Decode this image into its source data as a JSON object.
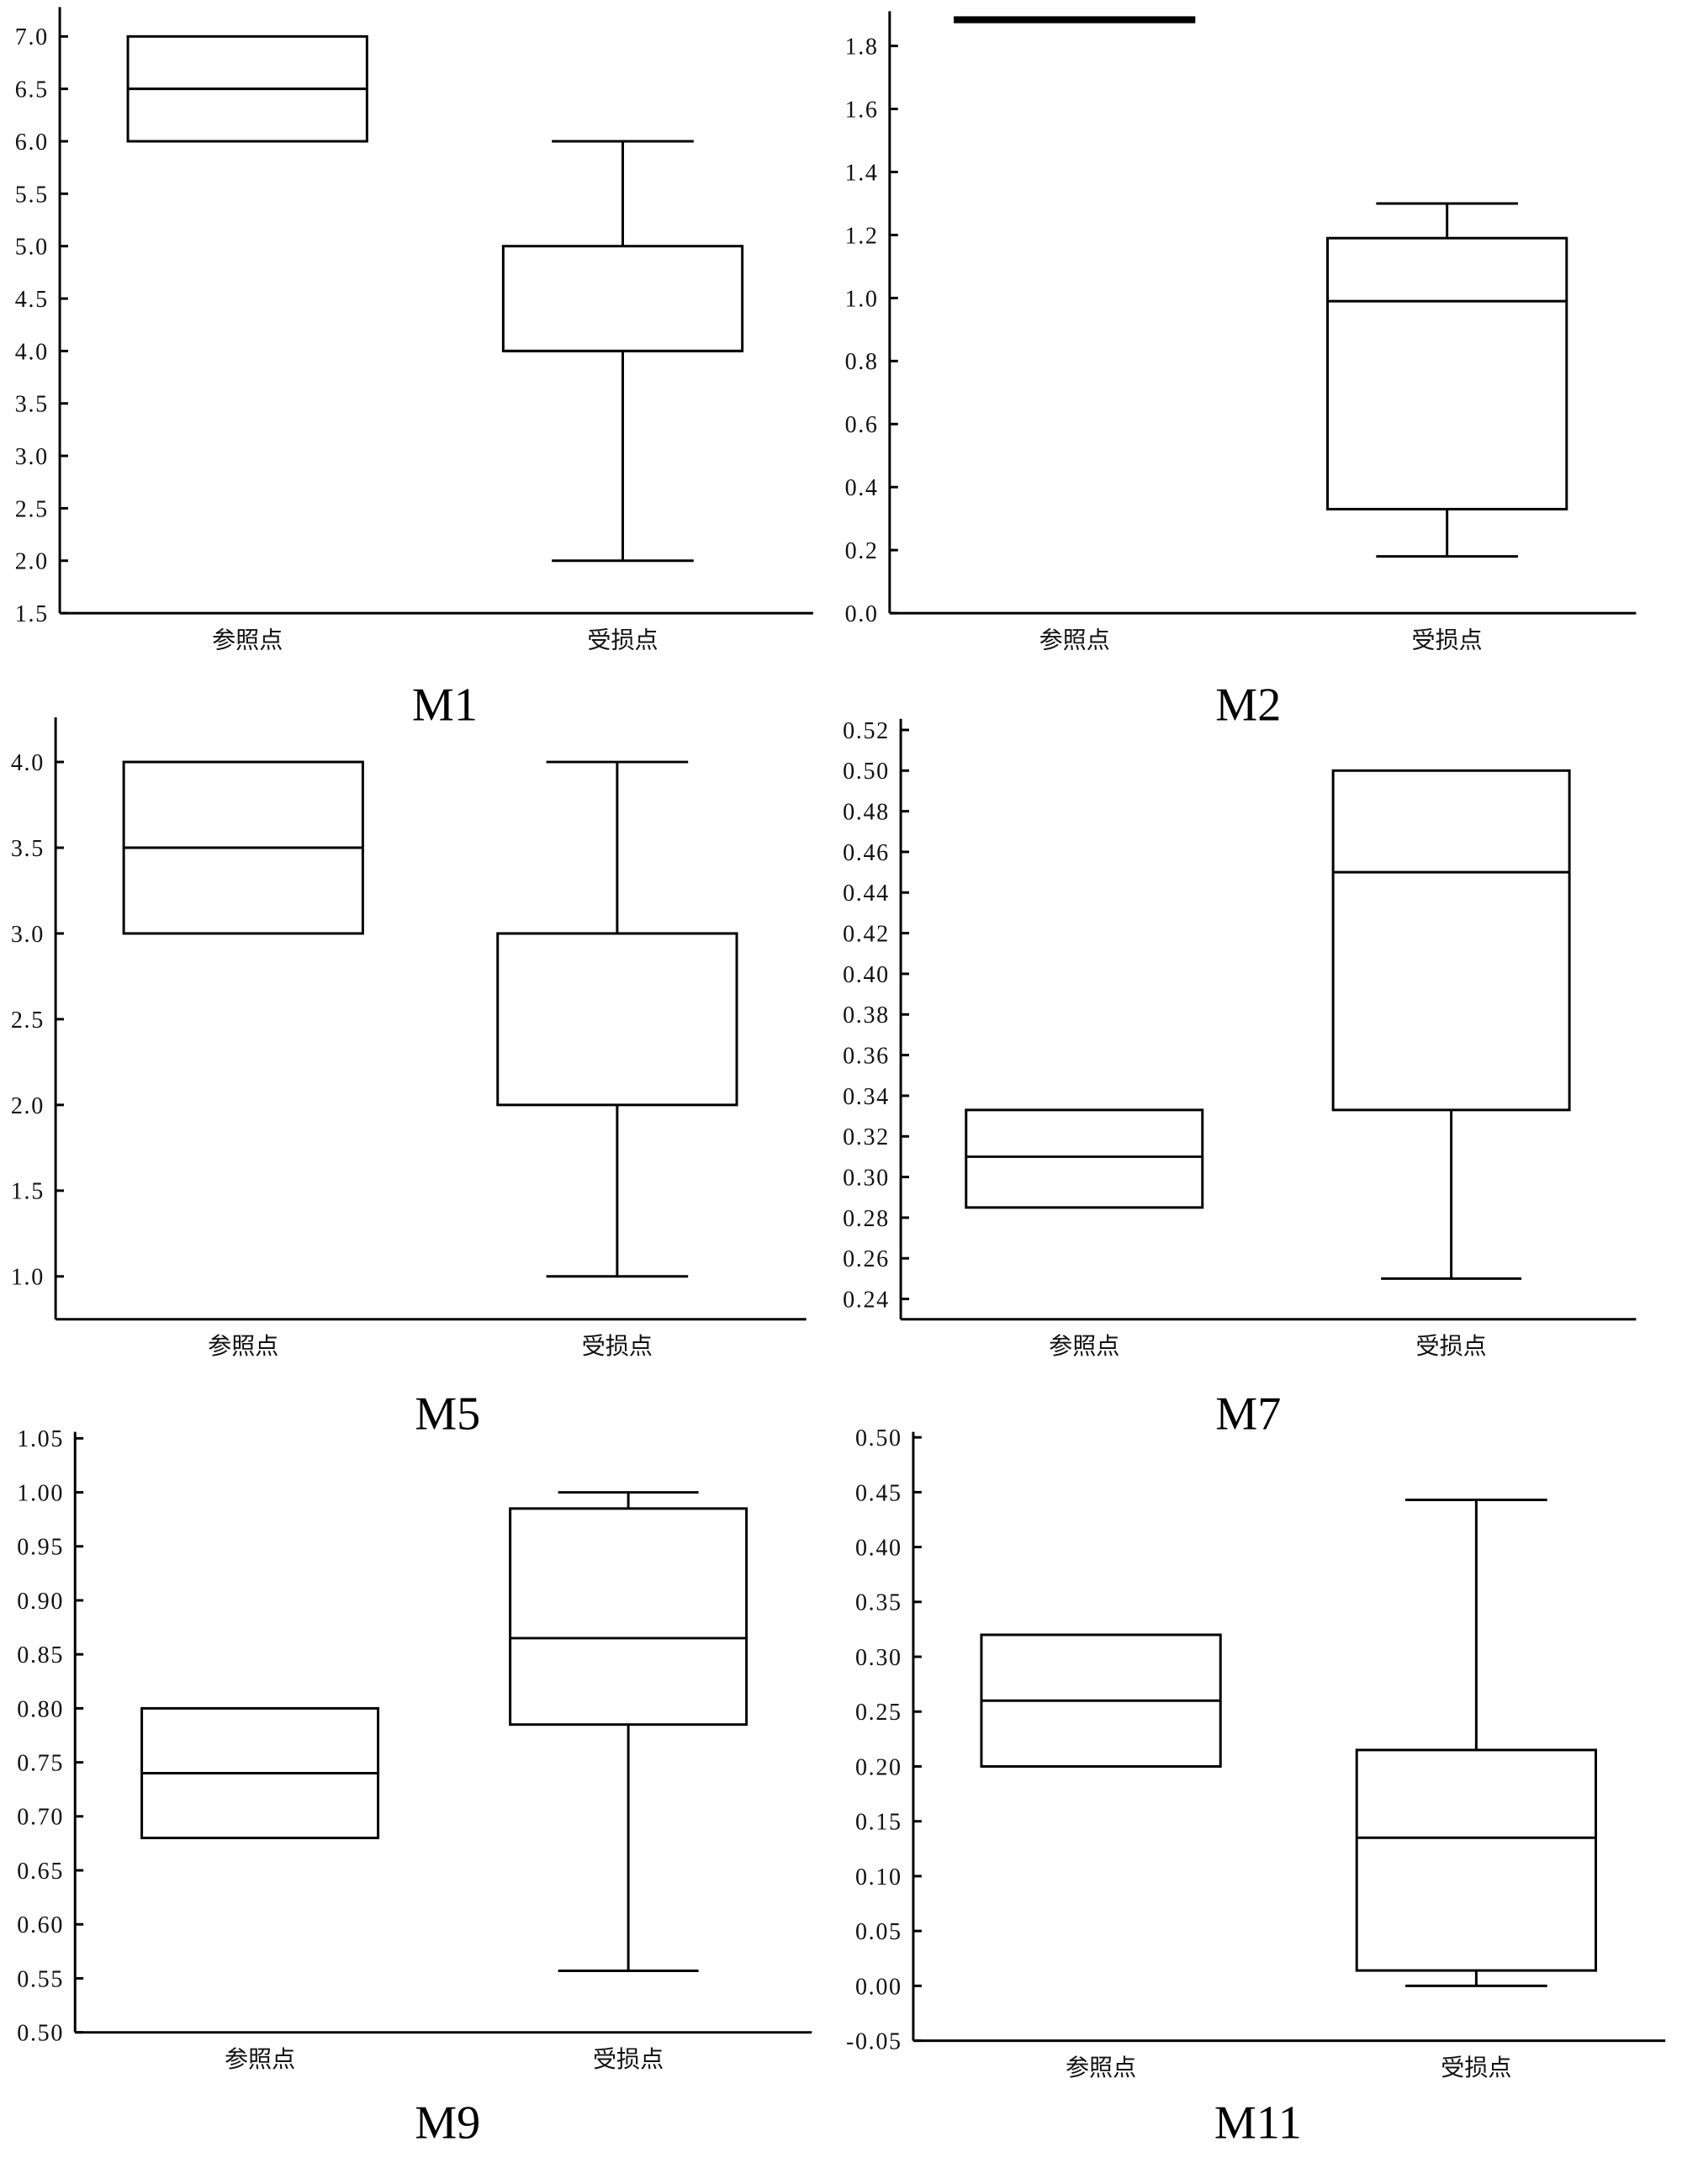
{
  "chart_data": [
    {
      "type": "box",
      "title": "M1",
      "categories": [
        "参照点",
        "受损点"
      ],
      "ylim": [
        1.5,
        7.28
      ],
      "yticks": [
        "1.5",
        "2.0",
        "2.5",
        "3.0",
        "3.5",
        "4.0",
        "4.5",
        "5.0",
        "5.5",
        "6.0",
        "6.5",
        "7.0"
      ],
      "boxes": [
        {
          "category": "参照点",
          "min": 6.0,
          "q1": 6.0,
          "median": 6.5,
          "q3": 7.0,
          "max": 7.0
        },
        {
          "category": "受损点",
          "min": 2.0,
          "q1": 4.0,
          "median": 4.0,
          "q3": 5.0,
          "max": 6.0
        }
      ]
    },
    {
      "type": "box",
      "title": "M2",
      "categories": [
        "参照点",
        "受损点"
      ],
      "ylim": [
        0.0,
        1.91
      ],
      "yticks": [
        "0.0",
        "0.2",
        "0.4",
        "0.6",
        "0.8",
        "1.0",
        "1.2",
        "1.4",
        "1.6",
        "1.8"
      ],
      "boxes": [
        {
          "category": "参照点",
          "min": 1.876,
          "q1": 1.876,
          "median": 1.883,
          "q3": 1.89,
          "max": 1.89
        },
        {
          "category": "受损点",
          "min": 0.18,
          "q1": 0.33,
          "median": 0.99,
          "q3": 1.19,
          "max": 1.3
        }
      ]
    },
    {
      "type": "box",
      "title": "M5",
      "categories": [
        "参照点",
        "受损点"
      ],
      "ylim": [
        0.75,
        4.26
      ],
      "yticks": [
        "1.0",
        "1.5",
        "2.0",
        "2.5",
        "3.0",
        "3.5",
        "4.0"
      ],
      "boxes": [
        {
          "category": "参照点",
          "min": 3.0,
          "q1": 3.0,
          "median": 3.5,
          "q3": 4.0,
          "max": 4.0
        },
        {
          "category": "受损点",
          "min": 1.0,
          "q1": 2.0,
          "median": 3.0,
          "q3": 3.0,
          "max": 4.0
        }
      ]
    },
    {
      "type": "box",
      "title": "M7",
      "categories": [
        "参照点",
        "受损点"
      ],
      "ylim": [
        0.23,
        0.5255
      ],
      "yticks": [
        "0.24",
        "0.26",
        "0.28",
        "0.30",
        "0.32",
        "0.34",
        "0.36",
        "0.38",
        "0.40",
        "0.42",
        "0.44",
        "0.46",
        "0.48",
        "0.50",
        "0.52"
      ],
      "boxes": [
        {
          "category": "参照点",
          "min": 0.285,
          "q1": 0.285,
          "median": 0.31,
          "q3": 0.333,
          "max": 0.333
        },
        {
          "category": "受损点",
          "min": 0.25,
          "q1": 0.333,
          "median": 0.45,
          "q3": 0.5,
          "max": 0.5
        }
      ]
    },
    {
      "type": "box",
      "title": "M9",
      "categories": [
        "参照点",
        "受损点"
      ],
      "ylim": [
        0.5,
        1.056
      ],
      "yticks": [
        "0.50",
        "0.55",
        "0.60",
        "0.65",
        "0.70",
        "0.75",
        "0.80",
        "0.85",
        "0.90",
        "0.95",
        "1.00",
        "1.05"
      ],
      "boxes": [
        {
          "category": "参照点",
          "min": 0.68,
          "q1": 0.68,
          "median": 0.74,
          "q3": 0.8,
          "max": 0.8
        },
        {
          "category": "受损点",
          "min": 0.557,
          "q1": 0.785,
          "median": 0.865,
          "q3": 0.985,
          "max": 1.0
        }
      ]
    },
    {
      "type": "box",
      "title": "M11",
      "categories": [
        "参照点",
        "受损点"
      ],
      "ylim": [
        -0.05,
        0.505
      ],
      "yticks": [
        "-0.05",
        "0.00",
        "0.05",
        "0.10",
        "0.15",
        "0.20",
        "0.25",
        "0.30",
        "0.35",
        "0.40",
        "0.45",
        "0.50"
      ],
      "boxes": [
        {
          "category": "参照点",
          "min": 0.2,
          "q1": 0.2,
          "median": 0.26,
          "q3": 0.32,
          "max": 0.32
        },
        {
          "category": "受损点",
          "min": 0.0,
          "q1": 0.014,
          "median": 0.135,
          "q3": 0.215,
          "max": 0.443
        }
      ]
    }
  ]
}
